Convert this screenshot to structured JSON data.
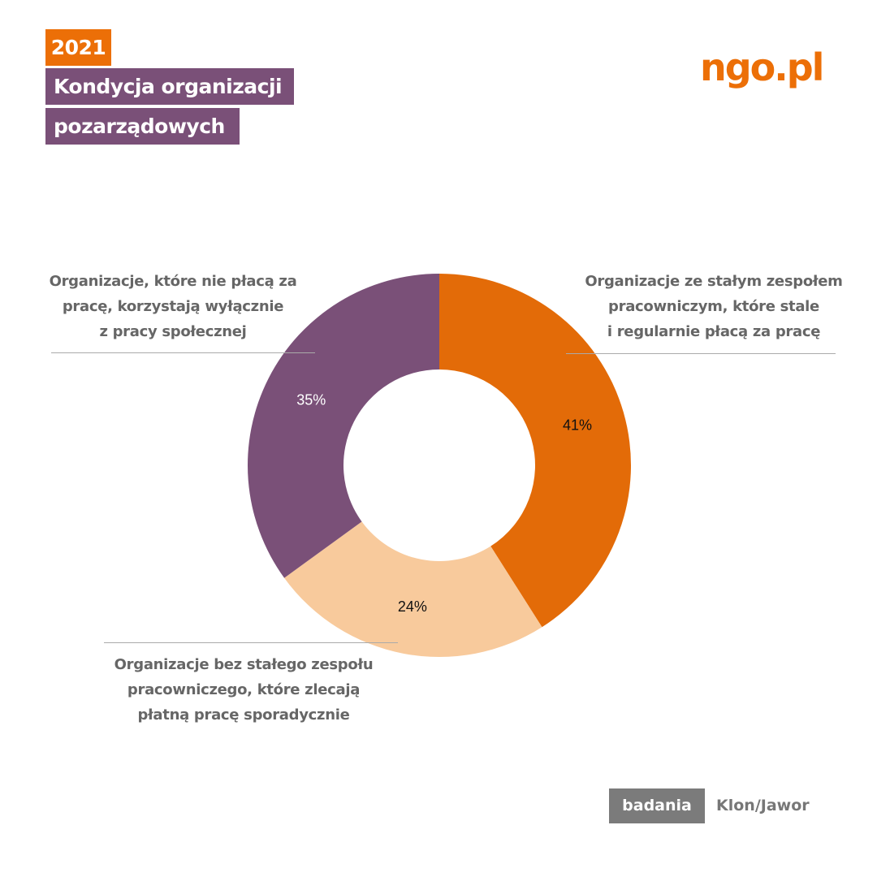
{
  "header": {
    "year": "2021",
    "title_line1": "Kondycja organizacji",
    "title_line2": "pozarządowych"
  },
  "logo": "ngo.pl",
  "footer": {
    "badge": "badania",
    "source": "Klon/Jawor"
  },
  "chart_data": {
    "type": "pie",
    "donut": true,
    "categories": [
      "Organizacje ze stałym zespołem pracowniczym, które stale i regularnie płacą za pracę",
      "Organizacje bez stałego zespołu pracowniczego, które zlecają płatną pracę sporadycznie",
      "Organizacje, które nie płacą za pracę, korzystają wyłącznie z pracy społecznej"
    ],
    "values": [
      41,
      24,
      35
    ],
    "data_labels": [
      "41%",
      "24%",
      "35%"
    ],
    "colors": [
      "#e36b08",
      "#f8ca9c",
      "#7a5078"
    ],
    "label_colors": [
      "#111111",
      "#111111",
      "#ffffff"
    ],
    "label_lines": [
      [
        "Organizacje ze stałym zespołem",
        "pracowniczym, które stale",
        "i regularnie płacą za pracę"
      ],
      [
        "Organizacje bez stałego zespołu",
        "pracowniczego, które zlecają",
        "płatną pracę sporadycznie"
      ],
      [
        "Organizacje, które nie płacą za",
        "pracę, korzystają wyłącznie",
        "z pracy społecznej"
      ]
    ]
  }
}
